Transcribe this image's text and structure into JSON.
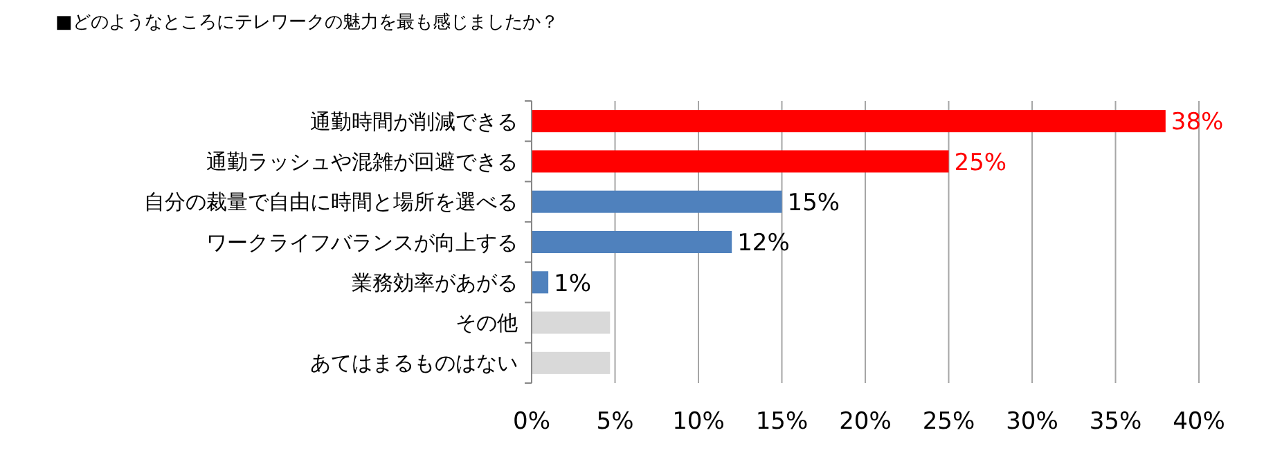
{
  "chart_data": {
    "type": "bar",
    "orientation": "horizontal",
    "title": "■どのようなところにテレワークの魅力を最も感じましたか？",
    "categories": [
      "通勤時間が削減できる",
      "通勤ラッシュや混雑が回避できる",
      "自分の裁量で自由に時間と場所を選べる",
      "ワークライフバランスが向上する",
      "業務効率があがる",
      "その他",
      "あてはまるものはない"
    ],
    "values": [
      38,
      25,
      15,
      12,
      1,
      4.7,
      4.7
    ],
    "colors": [
      "#ff0000",
      "#ff0000",
      "#4f81bd",
      "#4f81bd",
      "#4f81bd",
      "#d9d9d9",
      "#d9d9d9"
    ],
    "value_labels": [
      "38%",
      "25%",
      "15%",
      "12%",
      "1%",
      null,
      null
    ],
    "xlim": [
      0,
      40
    ],
    "xticks": [
      {
        "value": 0,
        "label": "0%"
      },
      {
        "value": 5,
        "label": "5%"
      },
      {
        "value": 10,
        "label": "10%"
      },
      {
        "value": 15,
        "label": "15%"
      },
      {
        "value": 20,
        "label": "20%"
      },
      {
        "value": 25,
        "label": "25%"
      },
      {
        "value": 30,
        "label": "30%"
      },
      {
        "value": 35,
        "label": "35%"
      },
      {
        "value": 40,
        "label": "40%"
      }
    ],
    "grid": "x"
  }
}
